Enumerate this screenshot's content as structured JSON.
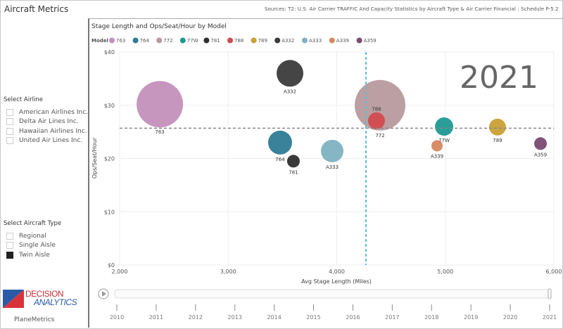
{
  "app": {
    "title": "Aircraft Metrics",
    "footer": "PlaneMetrics",
    "logo_text": "DECISION ANALYTICS",
    "sources": "Sources: T2:  U.S. Air Carrier TRAFFIC And Capacity Statistics by Aircraft Type & Air Carrier Financial : Schedule P-5.2"
  },
  "filters": {
    "airline": {
      "label": "Select Airline",
      "options": [
        {
          "label": "American Airlines Inc.",
          "checked": false
        },
        {
          "label": "Delta Air Lines Inc.",
          "checked": false
        },
        {
          "label": "Hawaiian Airlines Inc.",
          "checked": false
        },
        {
          "label": "United Air Lines Inc.",
          "checked": false
        }
      ]
    },
    "aircraft_type": {
      "label": "Select Aircraft Type",
      "options": [
        {
          "label": "Regional",
          "checked": false
        },
        {
          "label": "Single Aisle",
          "checked": false
        },
        {
          "label": "Twin Aisle",
          "checked": true
        }
      ]
    }
  },
  "timeline": {
    "years": [
      "2010",
      "2011",
      "2012",
      "2013",
      "2014",
      "2015",
      "2016",
      "2017",
      "2018",
      "2019",
      "2020",
      "2021"
    ],
    "current": "2021",
    "play_icon": "play-icon"
  },
  "chart_data": {
    "type": "scatter",
    "title": "Stage Length and Ops/Seat/Hour by Model",
    "legend_title": "Model",
    "legend_placement": "top-left",
    "xlabel": "Avg Stage Length (Miles)",
    "ylabel": "Ops/Seat/Hour",
    "xlim": [
      2000,
      6000
    ],
    "ylim": [
      0,
      40
    ],
    "xticks": [
      "2,000",
      "3,000",
      "4,000",
      "5,000",
      "6,000"
    ],
    "yticks": [
      "$0",
      "$10",
      "$20",
      "$30",
      "$40"
    ],
    "grid": true,
    "year_label": "2021",
    "reference_lines": {
      "x_average": 4269,
      "y_average": 25.7
    },
    "series": [
      {
        "name": "763",
        "color": "#c490bc",
        "x": 2370,
        "y": 30.2,
        "size": 33
      },
      {
        "name": "764",
        "color": "#2f7b94",
        "x": 3478,
        "y": 23.0,
        "size": 17
      },
      {
        "name": "772",
        "color": "#b79a9d",
        "x": 4399,
        "y": 30.0,
        "size": 36
      },
      {
        "name": "77W",
        "color": "#1f9893",
        "x": 4989,
        "y": 26.0,
        "size": 13
      },
      {
        "name": "781",
        "color": "#2e2e2e",
        "x": 3601,
        "y": 19.5,
        "size": 9
      },
      {
        "name": "788",
        "color": "#d04b4e",
        "x": 4366,
        "y": 27.1,
        "size": 12
      },
      {
        "name": "789",
        "color": "#c9a034",
        "x": 5481,
        "y": 25.9,
        "size": 12
      },
      {
        "name": "A332",
        "color": "#3b3b3b",
        "x": 3569,
        "y": 36.0,
        "size": 19
      },
      {
        "name": "A333",
        "color": "#7fb1c1",
        "x": 3958,
        "y": 21.4,
        "size": 16
      },
      {
        "name": "A339",
        "color": "#d7875f",
        "x": 4924,
        "y": 22.4,
        "size": 8
      },
      {
        "name": "A359",
        "color": "#7a4a74",
        "x": 5877,
        "y": 22.8,
        "size": 9
      }
    ]
  }
}
